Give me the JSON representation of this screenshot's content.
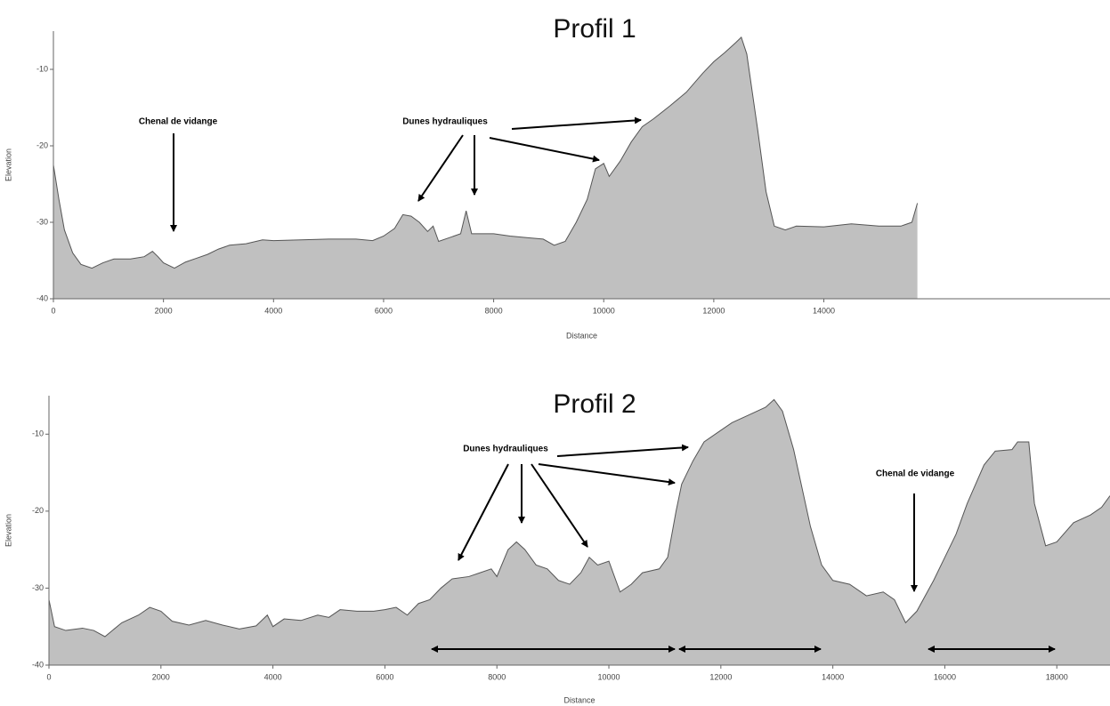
{
  "chart_data": [
    {
      "type": "area",
      "title": "Profil 1",
      "x_label": "Distance",
      "y_label": "Elevation",
      "color": "#c0c0c0",
      "x": [
        0,
        100,
        200,
        350,
        500,
        700,
        900,
        1100,
        1400,
        1650,
        1800,
        1900,
        2000,
        2200,
        2400,
        2600,
        2800,
        3000,
        3200,
        3500,
        3800,
        4000,
        4500,
        5000,
        5500,
        5800,
        6000,
        6200,
        6350,
        6500,
        6650,
        6800,
        6900,
        7000,
        7200,
        7400,
        7500,
        7600,
        7800,
        8000,
        8300,
        8600,
        8900,
        9100,
        9300,
        9500,
        9700,
        9850,
        10000,
        10100,
        10300,
        10500,
        10700,
        10900,
        11200,
        11500,
        11800,
        12000,
        12200,
        12400,
        12500,
        12600,
        12800,
        12950,
        13100,
        13300,
        13500,
        14000,
        14500,
        15000,
        15400,
        15600,
        15700
      ],
      "values": [
        -22.5,
        -27,
        -31,
        -34,
        -35.5,
        -36,
        -35.3,
        -34.8,
        -34.8,
        -34.5,
        -33.8,
        -34.5,
        -35.3,
        -36,
        -35.2,
        -34.7,
        -34.2,
        -33.5,
        -33,
        -32.8,
        -32.3,
        -32.4,
        -32.3,
        -32.2,
        -32.2,
        -32.4,
        -31.8,
        -30.8,
        -29,
        -29.2,
        -30,
        -31.2,
        -30.5,
        -32.5,
        -32,
        -31.5,
        -28.5,
        -31.5,
        -31.5,
        -31.5,
        -31.8,
        -32,
        -32.2,
        -33,
        -32.5,
        -30,
        -27,
        -23,
        -22.3,
        -24,
        -22,
        -19.5,
        -17.5,
        -16.5,
        -14.8,
        -13,
        -10.5,
        -9,
        -7.8,
        -6.5,
        -5.8,
        -8,
        -18,
        -26,
        -30.5,
        -31,
        -30.5,
        -30.6,
        -30.2,
        -30.5,
        -30.5,
        -30,
        -27.5
      ],
      "xlim": [
        0,
        19200
      ],
      "ylim": [
        -40,
        -5
      ],
      "xticks": [
        0,
        2000,
        4000,
        6000,
        8000,
        10000,
        12000,
        14000
      ],
      "yticks": [
        -40,
        -30,
        -20,
        -10
      ],
      "annotations": [
        {
          "text": "Chenal de vidange"
        },
        {
          "text": "Dunes hydrauliques"
        }
      ]
    },
    {
      "type": "area",
      "title": "Profil 2",
      "x_label": "Distance",
      "y_label": "Elevation",
      "color": "#c0c0c0",
      "x": [
        0,
        100,
        300,
        600,
        800,
        1000,
        1300,
        1600,
        1800,
        2000,
        2200,
        2500,
        2800,
        3100,
        3400,
        3700,
        3900,
        4000,
        4200,
        4500,
        4800,
        5000,
        5200,
        5500,
        5800,
        6000,
        6200,
        6400,
        6600,
        6800,
        7000,
        7200,
        7500,
        7700,
        7900,
        8000,
        8200,
        8350,
        8500,
        8700,
        8900,
        9100,
        9300,
        9500,
        9650,
        9800,
        10000,
        10200,
        10400,
        10600,
        10900,
        11050,
        11200,
        11300,
        11500,
        11700,
        12000,
        12200,
        12500,
        12800,
        12950,
        13100,
        13300,
        13600,
        13800,
        14000,
        14300,
        14600,
        14900,
        15100,
        15300,
        15500,
        15800,
        16000,
        16200,
        16400,
        16700,
        16900,
        17200,
        17300,
        17500,
        17600,
        17800,
        18000,
        18300,
        18600,
        18800,
        18950
      ],
      "values": [
        -31.5,
        -35,
        -35.5,
        -35.2,
        -35.5,
        -36.3,
        -34.5,
        -33.5,
        -32.5,
        -33,
        -34.3,
        -34.8,
        -34.2,
        -34.8,
        -35.3,
        -34.9,
        -33.5,
        -35,
        -34,
        -34.2,
        -33.5,
        -33.8,
        -32.8,
        -33,
        -33,
        -32.8,
        -32.5,
        -33.5,
        -32,
        -31.5,
        -30,
        -28.8,
        -28.5,
        -28,
        -27.5,
        -28.5,
        -25,
        -24,
        -25,
        -27,
        -27.5,
        -29,
        -29.5,
        -28,
        -26,
        -27,
        -26.5,
        -30.5,
        -29.5,
        -28,
        -27.5,
        -26,
        -20,
        -16.5,
        -13.5,
        -11,
        -9.5,
        -8.5,
        -7.5,
        -6.5,
        -5.5,
        -7,
        -12,
        -22,
        -27,
        -29,
        -29.5,
        -31,
        -30.5,
        -31.5,
        -34.5,
        -33,
        -29,
        -26,
        -23,
        -19,
        -14,
        -12.2,
        -12,
        -11,
        -11,
        -19,
        -24.5,
        -24,
        -21.5,
        -20.5,
        -19.5,
        -18
      ],
      "xlim": [
        0,
        18950
      ],
      "ylim": [
        -40,
        -5
      ],
      "xticks": [
        0,
        2000,
        4000,
        6000,
        8000,
        10000,
        12000,
        14000,
        16000,
        18000
      ],
      "yticks": [
        -40,
        -30,
        -20,
        -10
      ],
      "annotations": [
        {
          "text": "Dunes hydrauliques"
        },
        {
          "text": "Chenal de vidange"
        }
      ]
    }
  ]
}
